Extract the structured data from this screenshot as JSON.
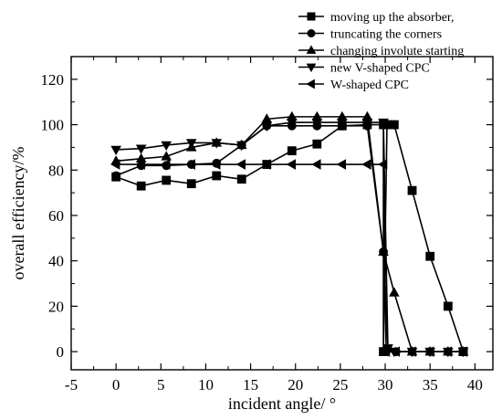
{
  "chart_data": {
    "type": "line",
    "title": "",
    "xlabel": "incident angle/ °",
    "ylabel": "overall efficiency/%",
    "xlim": [
      -5,
      42
    ],
    "ylim": [
      -8,
      130
    ],
    "x_ticks": [
      -5,
      0,
      5,
      10,
      15,
      20,
      25,
      30,
      35,
      40
    ],
    "y_ticks": [
      0,
      20,
      40,
      60,
      80,
      100,
      120
    ],
    "grid": false,
    "legend_position": "top-right",
    "series": [
      {
        "name": "moving up the absorber,",
        "marker": "square",
        "x": [
          0,
          2.8,
          5.6,
          8.4,
          11.2,
          14,
          16.8,
          19.6,
          22.4,
          25.2,
          28,
          29.8,
          29.8,
          30.2,
          31,
          33,
          35,
          37,
          38.7
        ],
        "y": [
          77,
          73,
          75.5,
          74,
          77.5,
          76,
          82.5,
          88.5,
          91.5,
          99.5,
          100,
          100,
          0,
          100,
          100,
          71,
          42,
          20,
          0
        ]
      },
      {
        "name": "truncating the corners",
        "marker": "circle",
        "x": [
          0,
          2.8,
          5.6,
          8.4,
          11.2,
          14,
          16.8,
          19.6,
          22.4,
          25.2,
          28,
          29.8,
          30.3,
          31.2,
          33,
          35,
          37,
          38.7
        ],
        "y": [
          77.5,
          82,
          82,
          82.5,
          83,
          91,
          99.5,
          99.5,
          99.5,
          99.5,
          99.5,
          44,
          1,
          0,
          0,
          0,
          0,
          0
        ]
      },
      {
        "name": "changing involute starting",
        "marker": "triangle-up",
        "x": [
          0,
          2.8,
          5.6,
          8.4,
          11.2,
          14,
          16.8,
          19.6,
          22.4,
          25.2,
          28,
          29.8,
          31,
          33,
          35,
          37,
          38.7
        ],
        "y": [
          84,
          85,
          86,
          90,
          92,
          91,
          102.5,
          103.5,
          103.5,
          103.5,
          103.5,
          44,
          26,
          0,
          0,
          0,
          0
        ]
      },
      {
        "name": "new V-shaped CPC",
        "marker": "triangle-down",
        "x": [
          0,
          2.8,
          5.6,
          8.4,
          11.2,
          14,
          16.8,
          19.6,
          22.4,
          25.2,
          28,
          29.8,
          30.3,
          31,
          33,
          35,
          37,
          38.7
        ],
        "y": [
          89,
          89.5,
          91,
          92,
          92,
          91,
          99.5,
          101,
          101,
          101,
          101,
          101,
          1.5,
          0,
          0,
          0,
          0,
          0
        ]
      },
      {
        "name": "W-shaped CPC",
        "marker": "triangle-left",
        "x": [
          0,
          2.8,
          5.6,
          8.4,
          11.2,
          14,
          16.8,
          19.6,
          22.4,
          25.2,
          28,
          29.8,
          30.1,
          31.2,
          33,
          35,
          37,
          38.7
        ],
        "y": [
          82.5,
          82.5,
          82.5,
          82.5,
          82.5,
          82.5,
          82.5,
          82.5,
          82.5,
          82.5,
          82.5,
          82.5,
          0,
          0,
          0,
          0,
          0,
          0
        ]
      }
    ]
  }
}
